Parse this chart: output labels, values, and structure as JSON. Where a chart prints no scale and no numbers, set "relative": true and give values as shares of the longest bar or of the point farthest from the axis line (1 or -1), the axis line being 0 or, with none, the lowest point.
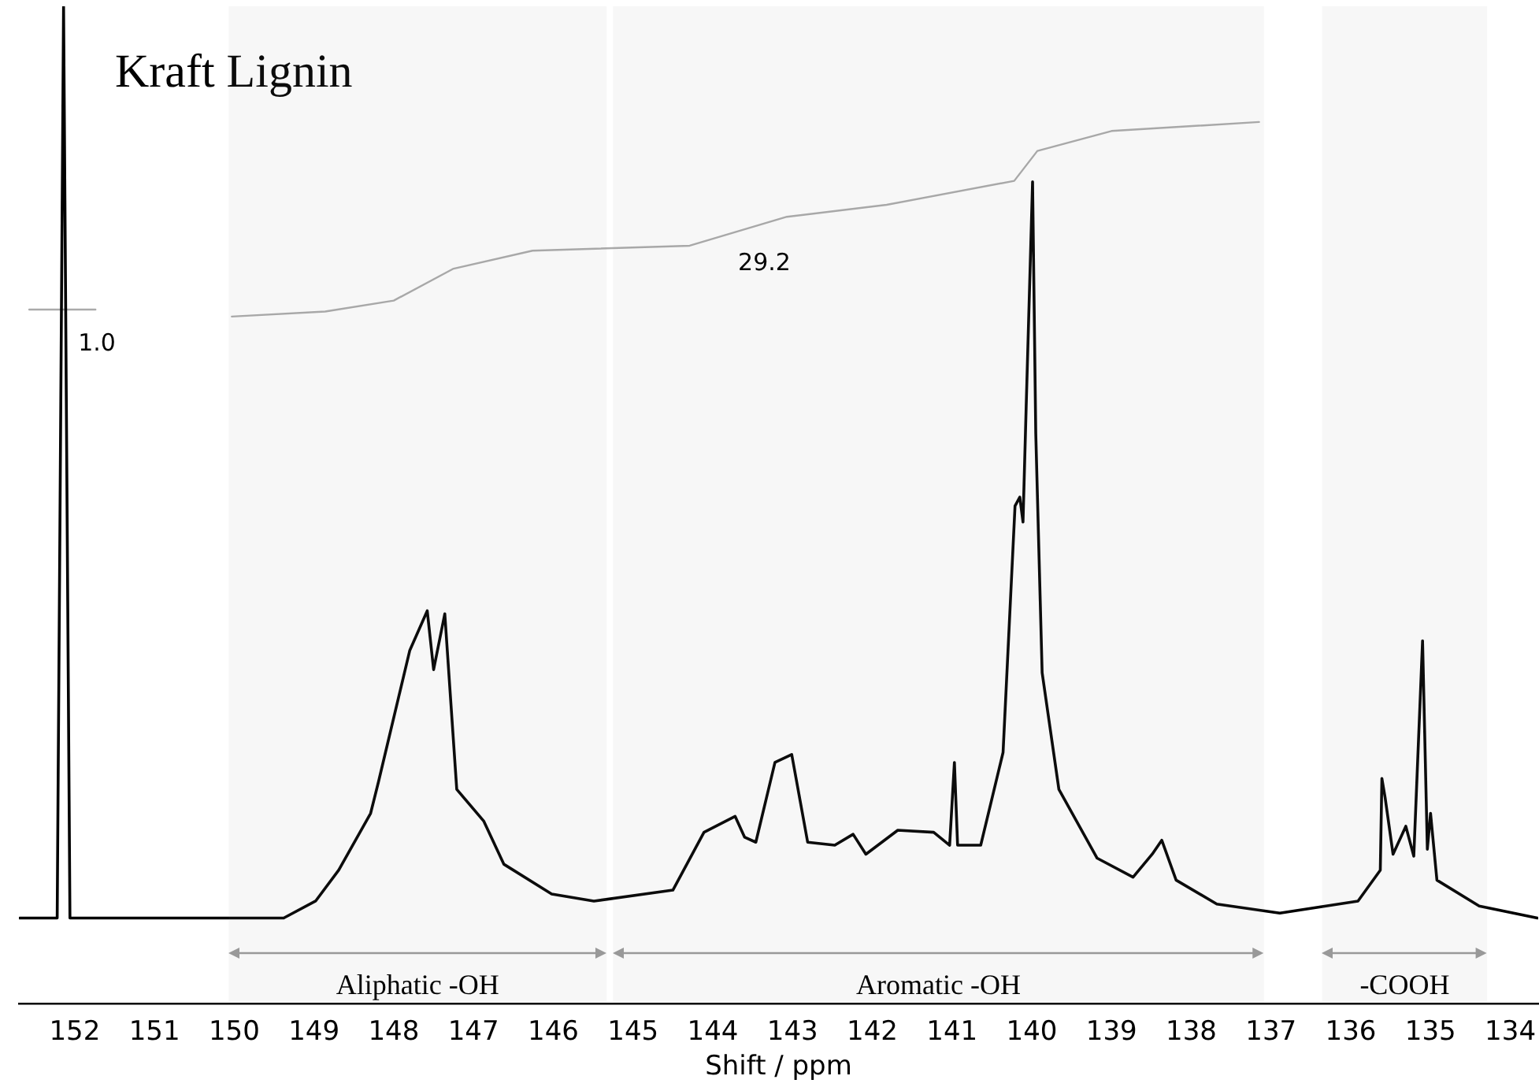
{
  "chart_data": {
    "type": "line",
    "title": "Kraft Lignin",
    "xlabel": "Shift / ppm",
    "relative": true,
    "xlim": [
      152.7,
      133.65
    ],
    "xticks": [
      152,
      151,
      150,
      149,
      148,
      147,
      146,
      145,
      144,
      143,
      142,
      141,
      140,
      139,
      138,
      137,
      136,
      135,
      134
    ],
    "grid": false,
    "legend": false,
    "series": [
      {
        "color": "#000000",
        "x": [
          152.69,
          152.22,
          152.14,
          152.06,
          149.38,
          148.98,
          148.69,
          148.29,
          148.19,
          147.8,
          147.58,
          147.5,
          147.36,
          147.21,
          146.87,
          146.62,
          146.02,
          145.49,
          144.5,
          144.11,
          143.72,
          143.6,
          143.46,
          143.22,
          143.01,
          142.81,
          142.47,
          142.24,
          142.08,
          141.68,
          141.23,
          141.03,
          140.97,
          140.93,
          140.64,
          140.36,
          140.21,
          140.15,
          140.11,
          140.07,
          139.99,
          139.95,
          139.87,
          139.66,
          139.18,
          138.73,
          138.49,
          138.37,
          138.19,
          137.68,
          136.89,
          135.91,
          135.63,
          135.61,
          135.57,
          135.47,
          135.31,
          135.21,
          135.1,
          135.04,
          135.0,
          134.92,
          134.39,
          133.66
        ],
        "values": [
          0.086,
          0.086,
          1.0,
          0.086,
          0.086,
          0.103,
          0.134,
          0.191,
          0.223,
          0.354,
          0.394,
          0.335,
          0.391,
          0.215,
          0.183,
          0.14,
          0.11,
          0.103,
          0.114,
          0.172,
          0.188,
          0.167,
          0.162,
          0.242,
          0.25,
          0.162,
          0.159,
          0.17,
          0.15,
          0.174,
          0.172,
          0.159,
          0.242,
          0.159,
          0.159,
          0.252,
          0.499,
          0.508,
          0.483,
          0.599,
          0.824,
          0.572,
          0.332,
          0.215,
          0.146,
          0.127,
          0.15,
          0.164,
          0.124,
          0.1,
          0.091,
          0.103,
          0.134,
          0.226,
          0.207,
          0.15,
          0.178,
          0.148,
          0.364,
          0.155,
          0.191,
          0.124,
          0.098,
          0.086
        ]
      },
      {
        "color": "#aaaaaa",
        "x": [
          152.57,
          151.74
        ],
        "values": [
          0.696,
          0.696
        ]
      },
      {
        "color": "#aaaaaa",
        "x": [
          150.03,
          148.86,
          148.0,
          147.25,
          146.26,
          144.29,
          143.07,
          141.82,
          140.22,
          139.93,
          139.0,
          137.15
        ],
        "values": [
          0.689,
          0.694,
          0.705,
          0.737,
          0.755,
          0.76,
          0.789,
          0.801,
          0.825,
          0.855,
          0.875,
          0.884
        ]
      }
    ],
    "annotations": [
      "1.0",
      "29.2"
    ],
    "bands": [
      {
        "axis": "x",
        "from": 150.07,
        "to": 145.33,
        "label": "Aliphatic -OH",
        "color": "#999999"
      },
      {
        "axis": "x",
        "from": 145.25,
        "to": 137.09,
        "label": "Aromatic -OH",
        "color": "#999999"
      },
      {
        "axis": "x",
        "from": 136.36,
        "to": 134.29,
        "label": "-COOH",
        "color": "#999999"
      }
    ]
  }
}
